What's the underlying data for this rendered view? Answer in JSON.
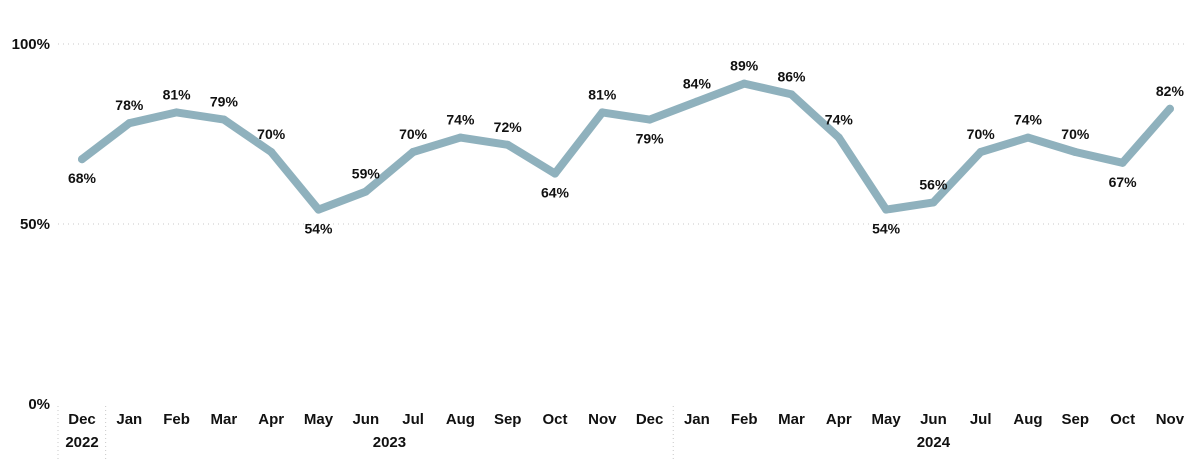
{
  "chart_data": {
    "type": "line",
    "title": "",
    "xlabel": "",
    "ylabel": "",
    "ylim": [
      0,
      100
    ],
    "y_ticks": [
      "0%",
      "50%",
      "100%"
    ],
    "y_tick_values": [
      0,
      50,
      100
    ],
    "grid": true,
    "line_color": "#8fb1bd",
    "categories": [
      "Dec",
      "Jan",
      "Feb",
      "Mar",
      "Apr",
      "May",
      "Jun",
      "Jul",
      "Aug",
      "Sep",
      "Oct",
      "Nov",
      "Dec",
      "Jan",
      "Feb",
      "Mar",
      "Apr",
      "May",
      "Jun",
      "Jul",
      "Aug",
      "Sep",
      "Oct",
      "Nov"
    ],
    "year_groups": [
      {
        "label": "2022",
        "start": 0,
        "end": 0
      },
      {
        "label": "2023",
        "start": 1,
        "end": 12
      },
      {
        "label": "2024",
        "start": 13,
        "end": 23
      }
    ],
    "series": [
      {
        "values": [
          68,
          78,
          81,
          79,
          70,
          54,
          59,
          70,
          74,
          72,
          64,
          81,
          79,
          84,
          89,
          86,
          74,
          54,
          56,
          70,
          74,
          70,
          67,
          82
        ],
        "labels": [
          "68%",
          "78%",
          "81%",
          "79%",
          "70%",
          "54%",
          "59%",
          "70%",
          "74%",
          "72%",
          "64%",
          "81%",
          "79%",
          "84%",
          "89%",
          "86%",
          "74%",
          "54%",
          "56%",
          "70%",
          "74%",
          "70%",
          "67%",
          "82%"
        ],
        "label_pos": [
          "below",
          "above",
          "above",
          "above",
          "above",
          "below",
          "above",
          "above",
          "above",
          "above",
          "below",
          "above",
          "below",
          "above",
          "above",
          "above",
          "above",
          "below",
          "above",
          "above",
          "above",
          "above",
          "below",
          "above"
        ]
      }
    ]
  }
}
